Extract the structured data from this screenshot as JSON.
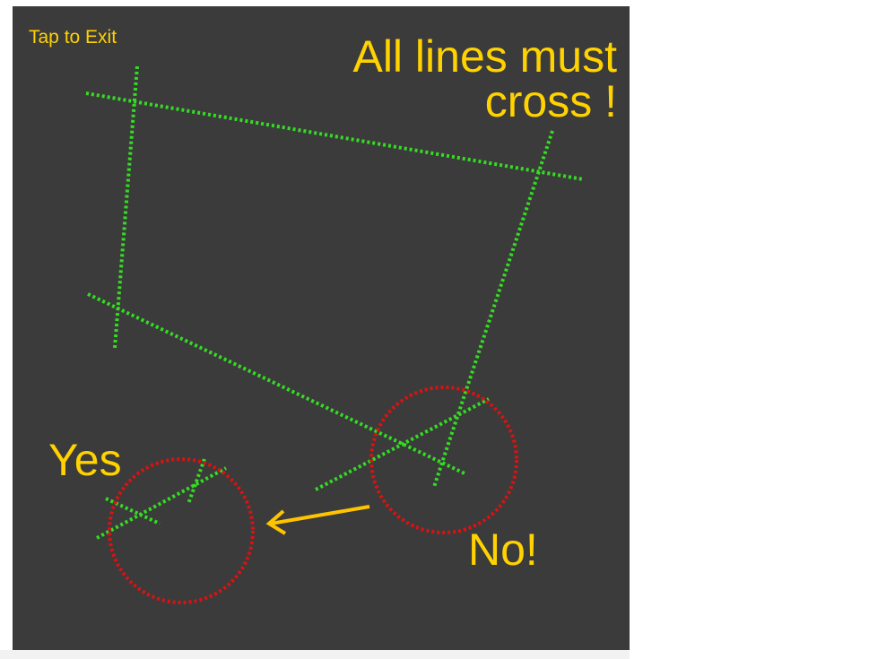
{
  "screen": {
    "exit_label": "Tap to Exit",
    "headline_line1": "All lines must",
    "headline_line2": "cross !",
    "yes_label": "Yes",
    "no_label": "No!"
  },
  "colors": {
    "background": "#3b3b3b",
    "text": "#ffd200",
    "guide_line": "#33dd22",
    "highlight_circle": "#dd1111",
    "arrow": "#ffc400"
  },
  "icons": {
    "arrow": "arrow-left-icon"
  }
}
